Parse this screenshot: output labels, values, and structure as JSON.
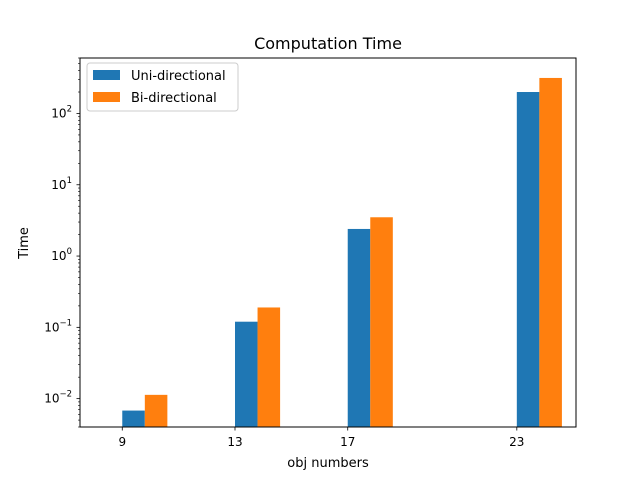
{
  "chart_data": {
    "type": "bar",
    "title": "Computation Time",
    "xlabel": "obj numbers",
    "ylabel": "Time",
    "yscale": "log",
    "ylim": [
      0.004,
      600
    ],
    "xlim": [
      7.5,
      25.1
    ],
    "x": [
      9,
      13,
      17,
      23
    ],
    "x_tick_labels": [
      "9",
      "13",
      "17",
      "23"
    ],
    "y_ticks": [
      {
        "value": 0.01,
        "base": "10",
        "exp": "−2"
      },
      {
        "value": 0.1,
        "base": "10",
        "exp": "−1"
      },
      {
        "value": 1,
        "base": "10",
        "exp": "0"
      },
      {
        "value": 10,
        "base": "10",
        "exp": "1"
      },
      {
        "value": 100,
        "base": "10",
        "exp": "2"
      }
    ],
    "grid": false,
    "legend_position": "top-left",
    "series": [
      {
        "name": "Uni-directional",
        "color": "#1f77b4",
        "values": [
          0.0068,
          0.12,
          2.4,
          200
        ]
      },
      {
        "name": "Bi-directional",
        "color": "#ff7f0e",
        "values": [
          0.0113,
          0.19,
          3.5,
          315
        ]
      }
    ]
  }
}
